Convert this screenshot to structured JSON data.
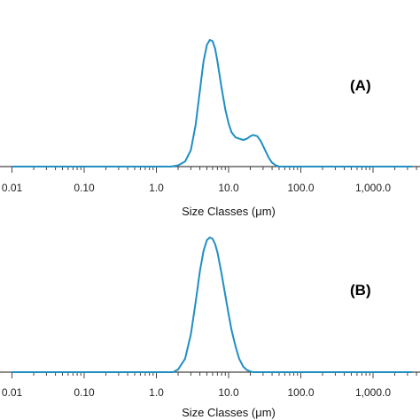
{
  "chart_data": [
    {
      "type": "line",
      "panel_label": "(A)",
      "xlabel": "Size Classes (μm)",
      "xscale": "log",
      "xlim": [
        0.01,
        3500
      ],
      "ticks": [
        "0.01",
        "0.10",
        "1.0",
        "10.0",
        "100.0",
        "1,000.0"
      ],
      "tick_values": [
        0.01,
        0.1,
        1,
        10,
        100,
        1000
      ],
      "ylim": [
        0,
        1
      ],
      "grid": false,
      "color": "#1f8fc2",
      "series": [
        {
          "x": [
            0.01,
            0.1,
            1,
            1.6,
            2.0,
            2.5,
            3.0,
            3.5,
            4.0,
            4.5,
            5.0,
            5.5,
            6.0,
            6.5,
            7.0,
            8.0,
            9.0,
            10.0,
            11.0,
            12.5,
            14.0,
            16.0,
            18.0,
            20.0,
            22.0,
            25.0,
            28.0,
            32.0,
            36.0,
            40.0,
            45.0,
            50.0,
            100,
            1000,
            3500
          ],
          "y": [
            0,
            0,
            0,
            0,
            0.01,
            0.04,
            0.13,
            0.33,
            0.6,
            0.83,
            0.96,
            1.0,
            0.99,
            0.93,
            0.83,
            0.62,
            0.45,
            0.34,
            0.27,
            0.23,
            0.22,
            0.21,
            0.22,
            0.24,
            0.25,
            0.24,
            0.2,
            0.13,
            0.07,
            0.03,
            0.01,
            0,
            0,
            0,
            0
          ]
        }
      ]
    },
    {
      "type": "line",
      "panel_label": "(B)",
      "xlabel": "Size Classes (μm)",
      "xscale": "log",
      "xlim": [
        0.01,
        3500
      ],
      "ticks": [
        "0.01",
        "0.10",
        "1.0",
        "10.0",
        "100.0",
        "1,000.0"
      ],
      "tick_values": [
        0.01,
        0.1,
        1,
        10,
        100,
        1000
      ],
      "ylim": [
        0,
        1
      ],
      "grid": false,
      "color": "#1f8fc2",
      "series": [
        {
          "x": [
            0.01,
            0.1,
            1,
            1.7,
            2.0,
            2.5,
            3.0,
            3.5,
            4.0,
            4.5,
            5.0,
            5.5,
            6.0,
            6.5,
            7.0,
            8.0,
            9.0,
            10.0,
            11.0,
            12.5,
            14.0,
            16.0,
            18.0,
            20.0,
            22.0,
            25.0,
            28.0,
            100,
            1000,
            3500
          ],
          "y": [
            0,
            0,
            0,
            0,
            0.02,
            0.1,
            0.28,
            0.52,
            0.75,
            0.9,
            0.98,
            1.0,
            0.99,
            0.95,
            0.89,
            0.73,
            0.57,
            0.43,
            0.31,
            0.19,
            0.1,
            0.04,
            0.015,
            0.005,
            0,
            0,
            0,
            0,
            0,
            0
          ]
        }
      ]
    }
  ]
}
